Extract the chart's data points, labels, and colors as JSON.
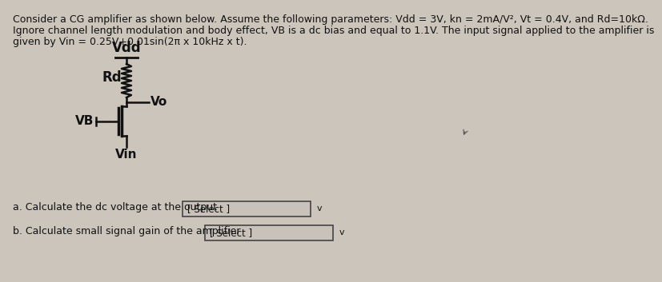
{
  "background_color": "#cbc5bc",
  "title_text_line1": "Consider a CG amplifier as shown below. Assume the following parameters: Vdd = 3V, kn = 2mA/V², Vt = 0.4V, and Rd=10kΩ.",
  "title_text_line2": "Ignore channel length modulation and body effect, VB is a dc bias and equal to 1.1V. The input signal applied to the amplifier is",
  "title_text_line3": "given by Vin = 0.25V+0.01sin(2π x 10kHz x t).",
  "label_Vdd": "Vdd",
  "label_Rd": "Rd",
  "label_Vo": "Vo",
  "label_VB": "VB",
  "label_Vin": "Vin",
  "question_a": "a. Calculate the dc voltage at the output",
  "question_b": "b. Calculate small signal gain of the amplifier",
  "select_text": "[ Select ]",
  "font_size_body": 9.0,
  "font_size_labels": 11,
  "font_size_select": 8.5,
  "text_color": "#111111",
  "box_color": "#c8c2ba",
  "box_border": "#444444"
}
